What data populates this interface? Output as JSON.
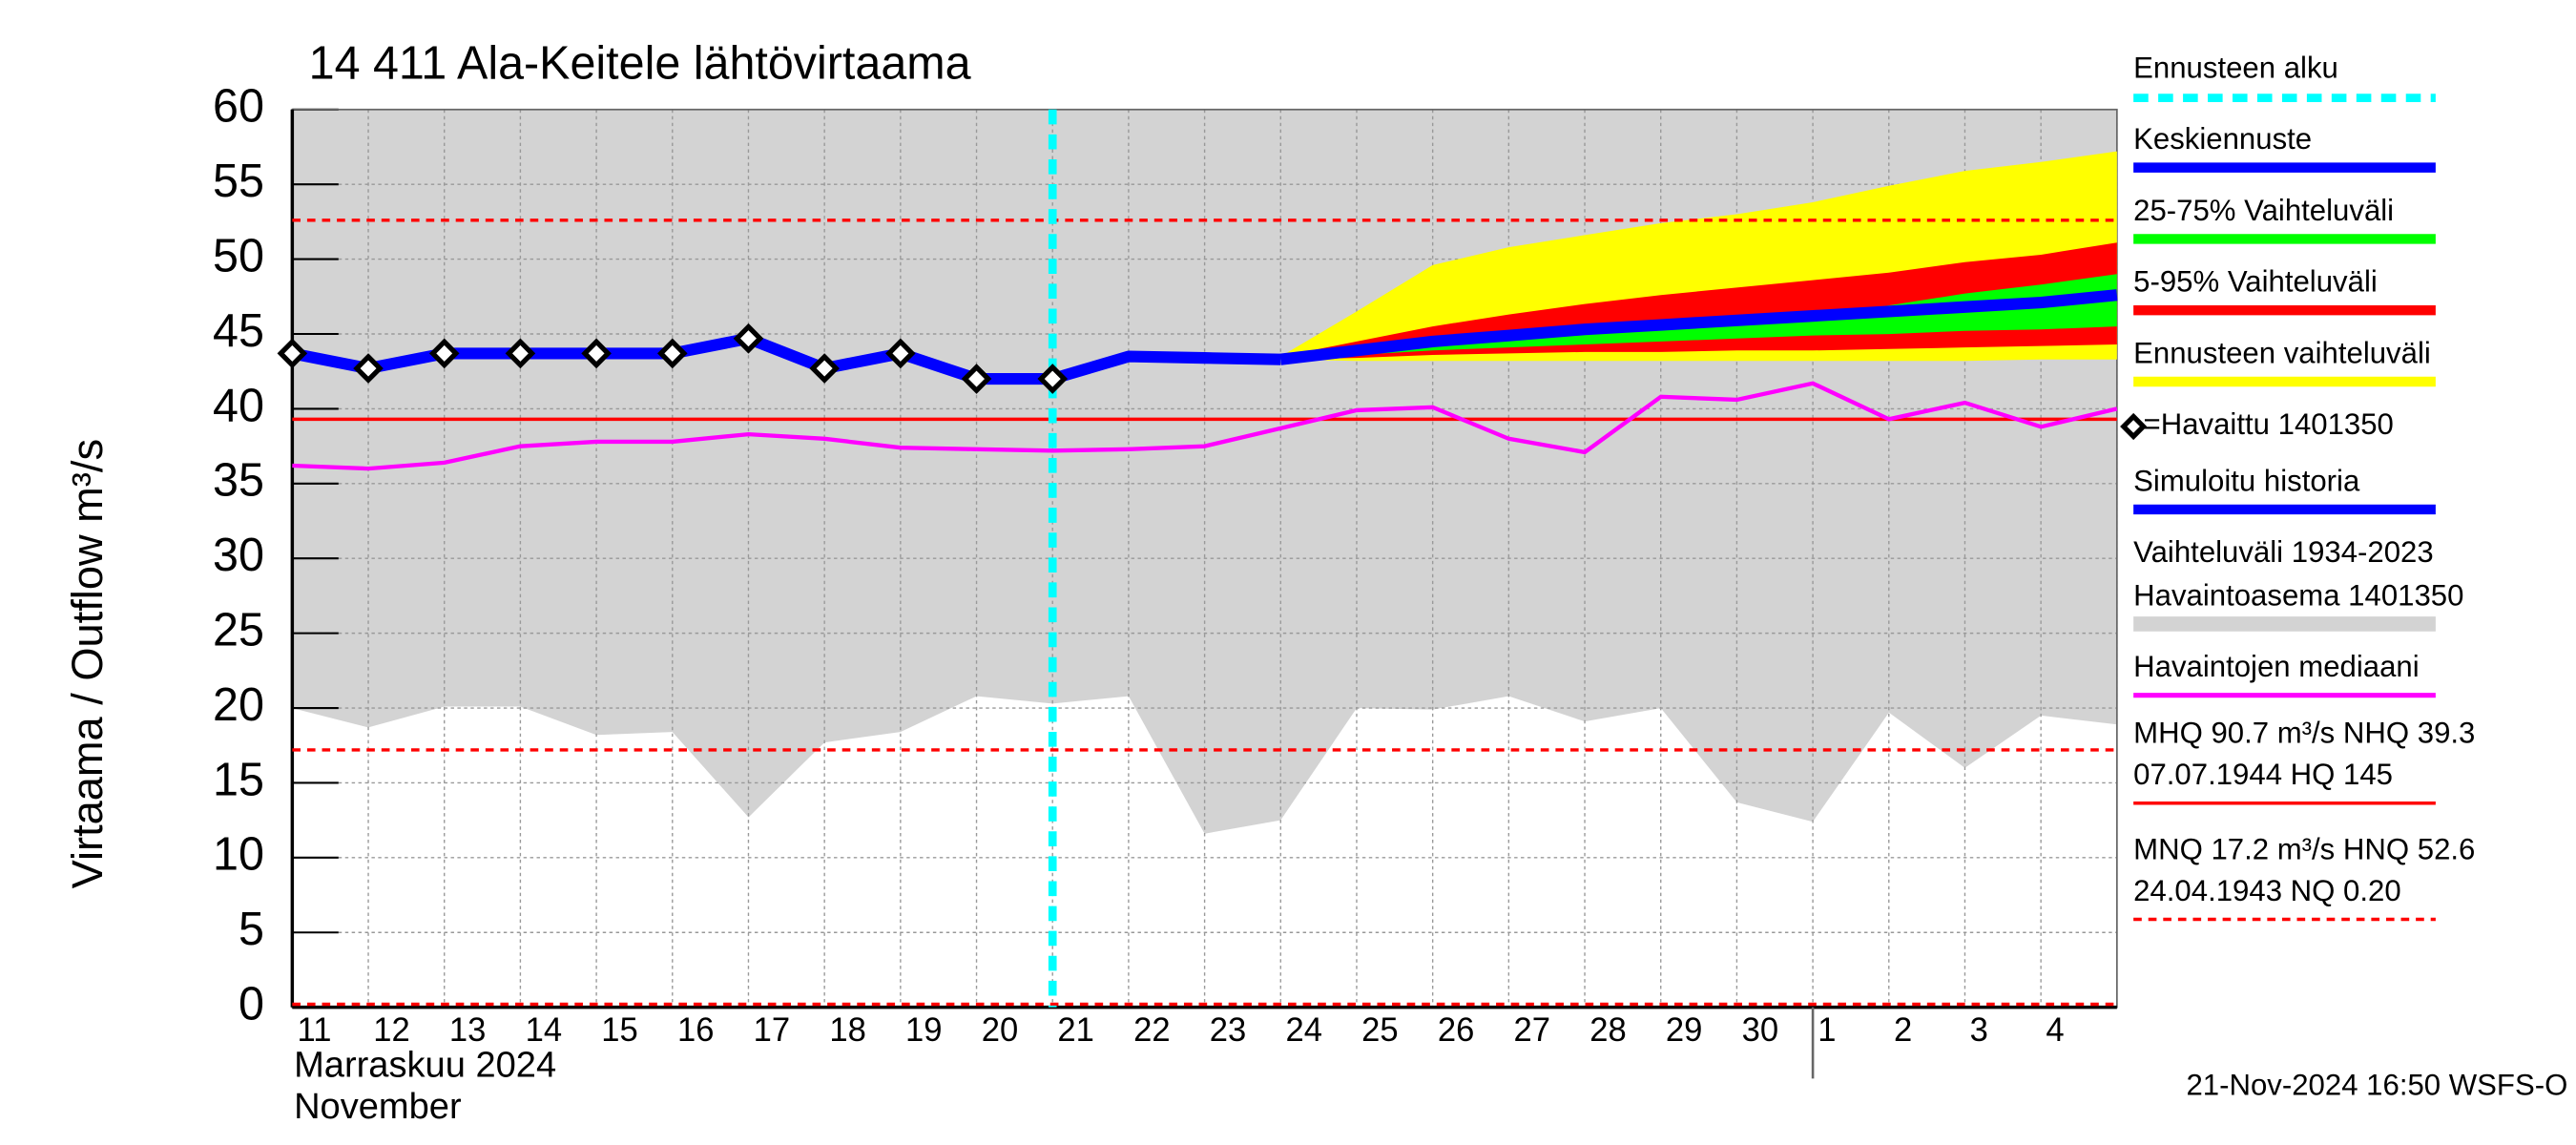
{
  "chart_data": {
    "type": "line",
    "title": "14 411 Ala-Keitele lähtövirtaama",
    "y_label": "Virtaama / Outflow    m³/s",
    "x_label": [
      "Marraskuu 2024",
      "November"
    ],
    "timestamp": "21-Nov-2024 16:50 WSFS-O",
    "categories": [
      "11",
      "12",
      "13",
      "14",
      "15",
      "16",
      "17",
      "18",
      "19",
      "20",
      "21",
      "22",
      "23",
      "24",
      "25",
      "26",
      "27",
      "28",
      "29",
      "30",
      "1",
      "2",
      "3",
      "4",
      null
    ],
    "ylim": [
      0,
      60
    ],
    "yticks": [
      0,
      5,
      10,
      15,
      20,
      25,
      30,
      35,
      40,
      45,
      50,
      55,
      60
    ],
    "grid": true,
    "forecast_start": {
      "name": "Ennusteen alku",
      "x": 10,
      "color": "#00ffff"
    },
    "series": [
      {
        "name": "Keskiennuste",
        "kind": "line",
        "color": "#0000ff",
        "values": [
          null,
          null,
          null,
          null,
          null,
          null,
          null,
          null,
          null,
          null,
          null,
          null,
          null,
          43.3,
          43.9,
          44.5,
          44.9,
          45.3,
          45.6,
          45.9,
          46.2,
          46.5,
          46.8,
          47.1,
          47.6
        ]
      },
      {
        "name": "25-75% Vaihteluväli",
        "kind": "band",
        "color": "#00ff00",
        "upper": [
          null,
          null,
          null,
          null,
          null,
          null,
          null,
          null,
          null,
          null,
          null,
          null,
          null,
          43.4,
          44.0,
          44.6,
          45.0,
          45.4,
          45.7,
          45.9,
          46.2,
          46.9,
          47.7,
          48.3,
          49.0
        ],
        "lower": [
          null,
          null,
          null,
          null,
          null,
          null,
          null,
          null,
          null,
          null,
          null,
          null,
          null,
          43.3,
          43.6,
          43.9,
          44.1,
          44.3,
          44.5,
          44.7,
          44.9,
          45.0,
          45.2,
          45.3,
          45.5
        ]
      },
      {
        "name": "5-95% Vaihteluväli",
        "kind": "band",
        "color": "#ff0000",
        "upper": [
          null,
          null,
          null,
          null,
          null,
          null,
          null,
          null,
          null,
          null,
          null,
          null,
          null,
          43.5,
          44.5,
          45.5,
          46.3,
          47.0,
          47.6,
          48.1,
          48.6,
          49.1,
          49.8,
          50.3,
          51.1
        ],
        "lower": [
          null,
          null,
          null,
          null,
          null,
          null,
          null,
          null,
          null,
          null,
          null,
          null,
          null,
          43.3,
          43.4,
          43.6,
          43.7,
          43.8,
          43.8,
          43.9,
          43.9,
          44.0,
          44.1,
          44.2,
          44.3
        ]
      },
      {
        "name": "Ennusteen vaihteluväli",
        "kind": "band",
        "color": "#ffff00",
        "upper": [
          null,
          null,
          null,
          null,
          null,
          null,
          null,
          null,
          null,
          null,
          null,
          null,
          null,
          43.5,
          46.5,
          49.6,
          50.8,
          51.6,
          52.4,
          53.0,
          53.8,
          54.9,
          55.9,
          56.5,
          57.2
        ],
        "lower": [
          null,
          null,
          null,
          null,
          null,
          null,
          null,
          null,
          null,
          null,
          null,
          null,
          null,
          43.3,
          43.2,
          43.2,
          43.2,
          43.2,
          43.2,
          43.2,
          43.2,
          43.2,
          43.2,
          43.3,
          43.3
        ]
      },
      {
        "name": "=Havaittu 1401350",
        "kind": "marker",
        "color": "#000000",
        "values": [
          43.7,
          42.7,
          43.7,
          43.7,
          43.7,
          43.7,
          44.7,
          42.7,
          43.7,
          42.0,
          42.0,
          null,
          null,
          null,
          null,
          null,
          null,
          null,
          null,
          null,
          null,
          null,
          null,
          null,
          null
        ]
      },
      {
        "name": "Simuloitu historia",
        "kind": "line",
        "color": "#0000ff",
        "values": [
          43.7,
          42.7,
          43.7,
          43.7,
          43.7,
          43.7,
          44.7,
          42.7,
          43.7,
          42.0,
          42.0,
          43.5,
          43.4,
          43.3,
          null,
          null,
          null,
          null,
          null,
          null,
          null,
          null,
          null,
          null,
          null
        ]
      },
      {
        "name": [
          "Vaihteluväli 1934-2023",
          " Havaintoasema 1401350"
        ],
        "kind": "range",
        "color": "#d3d3d3",
        "upper": [
          60,
          60,
          60,
          60,
          60,
          60,
          60,
          60,
          60,
          60,
          60,
          60,
          60,
          60,
          60,
          60,
          60,
          60,
          60,
          60,
          60,
          60,
          60,
          60,
          60
        ],
        "lower": [
          20.0,
          18.7,
          20.1,
          20.1,
          18.2,
          18.4,
          12.7,
          17.7,
          18.4,
          20.8,
          20.3,
          20.8,
          11.6,
          12.5,
          20.0,
          19.9,
          20.8,
          19.1,
          20.0,
          13.7,
          12.4,
          19.7,
          16.0,
          19.5,
          18.9
        ]
      },
      {
        "name": "Havaintojen mediaani",
        "kind": "thin",
        "color": "#ff00ff",
        "values": [
          36.2,
          36.0,
          36.4,
          37.5,
          37.8,
          37.8,
          38.3,
          38.0,
          37.4,
          37.3,
          37.2,
          37.3,
          37.5,
          38.7,
          39.9,
          40.1,
          38.0,
          37.1,
          40.8,
          40.6,
          41.7,
          39.3,
          40.4,
          38.8,
          40.0
        ]
      }
    ],
    "reference_lines": [
      {
        "name": [
          "MHQ 90.7 m³/s NHQ 39.3",
          "07.07.1944 HQ  145"
        ],
        "color": "#ff0000",
        "dashed": false,
        "values": [
          39.3
        ]
      },
      {
        "name": [
          "MNQ 17.2 m³/s HNQ 52.6",
          "24.04.1943 NQ 0.20"
        ],
        "color": "#ff0000",
        "dashed": true,
        "values": [
          52.6,
          17.2,
          0.2
        ]
      }
    ]
  }
}
